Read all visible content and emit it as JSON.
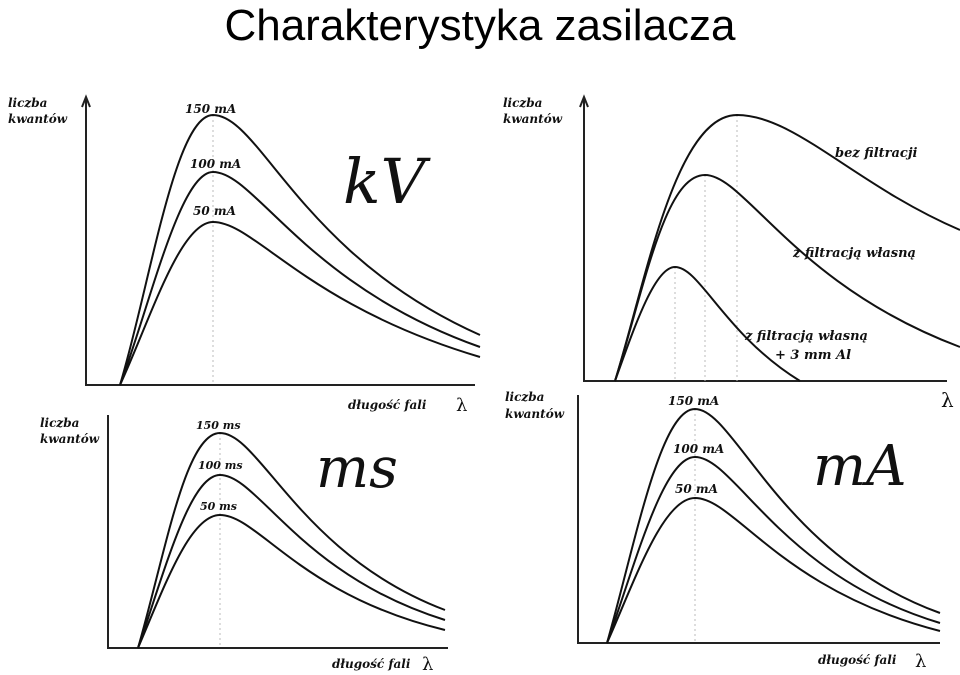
{
  "title": "Charakterystyka zasilacza",
  "panels": [
    {
      "id": "kv",
      "big_label": "kV",
      "y_axis": [
        "liczba",
        "kwantów"
      ],
      "x_axis": "długość fali",
      "lambda": "λ",
      "curve_labels": [
        "150 mA",
        "100 mA",
        "50 mA"
      ]
    },
    {
      "id": "filtration",
      "y_axis": [
        "liczba",
        "kwantów"
      ],
      "lambda": "λ",
      "curve_labels": [
        "bez filtracji",
        "z filtracją własną",
        "z filtracją własną",
        "+ 3 mm Al"
      ]
    },
    {
      "id": "ms",
      "big_label": "ms",
      "y_axis": [
        "liczba",
        "kwantów"
      ],
      "x_axis": "długość fali",
      "lambda": "λ",
      "curve_labels": [
        "150 ms",
        "100 ms",
        "50 ms"
      ]
    },
    {
      "id": "ma",
      "big_label": "mA",
      "y_axis": [
        "liczba",
        "kwantów"
      ],
      "x_axis": "długość fali",
      "lambda": "λ",
      "curve_labels": [
        "150 mA",
        "100 mA",
        "50 mA"
      ]
    }
  ]
}
